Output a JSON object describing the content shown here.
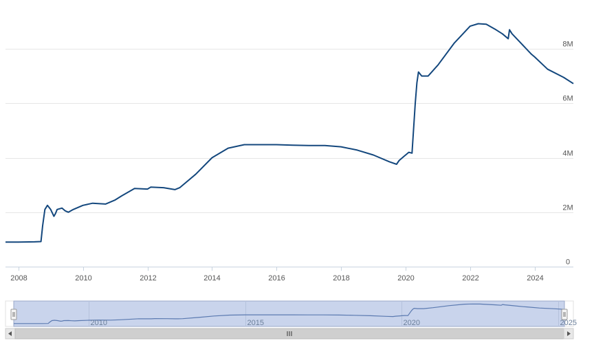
{
  "chart_data": {
    "type": "line",
    "title": "",
    "xlabel": "",
    "ylabel": "",
    "xlim": [
      2007.6,
      2025.2
    ],
    "ylim": [
      0,
      9000000
    ],
    "y_axis_position": "right",
    "grid": true,
    "legend": "none",
    "x_tick_labels": [
      "2008",
      "2010",
      "2012",
      "2014",
      "2016",
      "2018",
      "2020",
      "2022",
      "2024"
    ],
    "y_tick_labels": [
      "0",
      "2M",
      "4M",
      "6M",
      "8M"
    ],
    "y_ticks": [
      0,
      2000000,
      4000000,
      6000000,
      8000000
    ],
    "series": [
      {
        "color": "#13477d",
        "x": [
          2007.6,
          2008.0,
          2008.5,
          2008.7,
          2008.75,
          2008.82,
          2008.9,
          2009.0,
          2009.1,
          2009.15,
          2009.2,
          2009.35,
          2009.45,
          2009.55,
          2009.7,
          2010.0,
          2010.3,
          2010.7,
          2011.0,
          2011.2,
          2011.6,
          2012.0,
          2012.1,
          2012.5,
          2012.85,
          2013.0,
          2013.5,
          2014.0,
          2014.5,
          2015.0,
          2015.5,
          2016.0,
          2016.5,
          2017.0,
          2017.5,
          2018.0,
          2018.5,
          2019.0,
          2019.5,
          2019.72,
          2019.8,
          2019.95,
          2020.0,
          2020.1,
          2020.2,
          2020.3,
          2020.35,
          2020.4,
          2020.5,
          2020.7,
          2021.0,
          2021.5,
          2022.0,
          2022.25,
          2022.5,
          2022.8,
          2023.0,
          2023.18,
          2023.22,
          2023.3,
          2023.5,
          2023.9,
          2024.0,
          2024.4,
          2024.9,
          2025.2
        ],
        "y": [
          900000,
          900000,
          910000,
          920000,
          1500000,
          2100000,
          2250000,
          2100000,
          1850000,
          1950000,
          2100000,
          2150000,
          2050000,
          2000000,
          2100000,
          2250000,
          2330000,
          2300000,
          2450000,
          2600000,
          2870000,
          2850000,
          2920000,
          2900000,
          2830000,
          2900000,
          3400000,
          4000000,
          4350000,
          4480000,
          4480000,
          4480000,
          4460000,
          4450000,
          4450000,
          4400000,
          4280000,
          4100000,
          3850000,
          3760000,
          3900000,
          4050000,
          4100000,
          4200000,
          4170000,
          6000000,
          6750000,
          7150000,
          7000000,
          7000000,
          7400000,
          8200000,
          8830000,
          8920000,
          8900000,
          8700000,
          8550000,
          8370000,
          8700000,
          8550000,
          8300000,
          7800000,
          7700000,
          7250000,
          6950000,
          6720000
        ]
      }
    ],
    "navigator": {
      "x_tick_labels": [
        "2010",
        "2015",
        "2020",
        "2025"
      ],
      "x_ticks": [
        2010,
        2015,
        2020,
        2025
      ],
      "xlim": [
        2007.6,
        2025.2
      ]
    }
  }
}
